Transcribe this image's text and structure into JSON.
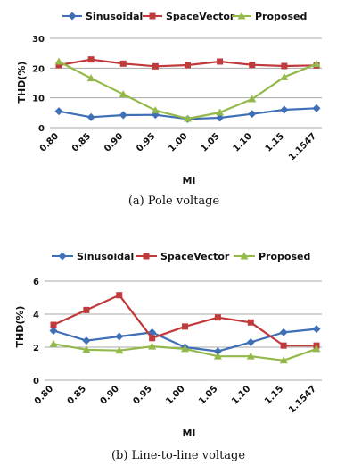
{
  "chart_data": [
    {
      "type": "line",
      "categories": [
        "0.80",
        "0.85",
        "0.90",
        "0.95",
        "1.00",
        "1.05",
        "1.10",
        "1.15",
        "1.1547"
      ],
      "series": [
        {
          "name": "Sinusoidal",
          "color": "#3f6fb5",
          "marker": "diamond",
          "values": [
            5.5,
            3.5,
            4.2,
            4.3,
            2.9,
            3.3,
            4.6,
            6.0,
            6.5
          ]
        },
        {
          "name": "SpaceVector",
          "color": "#c0393b",
          "marker": "square",
          "values": [
            21.0,
            22.9,
            21.5,
            20.6,
            21.0,
            22.2,
            21.1,
            20.7,
            20.9
          ]
        },
        {
          "name": "Proposed",
          "color": "#93b94a",
          "marker": "triangle",
          "values": [
            22.2,
            16.6,
            11.2,
            5.8,
            3.0,
            5.1,
            9.6,
            17.0,
            21.4
          ]
        }
      ],
      "xlabel": "MI",
      "ylabel": "THD(%)",
      "ylim": [
        0,
        30
      ],
      "yticks": [
        0,
        10,
        20,
        30
      ],
      "grid": true,
      "legend": "top",
      "caption": "(a) Pole voltage"
    },
    {
      "type": "line",
      "categories": [
        "0.80",
        "0.85",
        "0.90",
        "0.95",
        "1.00",
        "1.05",
        "1.10",
        "1.15",
        "1.1547"
      ],
      "series": [
        {
          "name": "Sinusoidal",
          "color": "#3f6fb5",
          "marker": "diamond",
          "values": [
            3.0,
            2.4,
            2.65,
            2.9,
            2.0,
            1.75,
            2.3,
            2.9,
            3.1
          ]
        },
        {
          "name": "SpaceVector",
          "color": "#c0393b",
          "marker": "square",
          "values": [
            3.35,
            4.25,
            5.15,
            2.55,
            3.25,
            3.8,
            3.5,
            2.1,
            2.1
          ]
        },
        {
          "name": "Proposed",
          "color": "#93b94a",
          "marker": "triangle",
          "values": [
            2.2,
            1.85,
            1.8,
            2.05,
            1.9,
            1.45,
            1.45,
            1.2,
            1.9
          ]
        }
      ],
      "xlabel": "MI",
      "ylabel": "THD(%)",
      "ylim": [
        0,
        6
      ],
      "yticks": [
        0,
        2,
        4,
        6
      ],
      "grid": true,
      "legend": "top",
      "caption": "(b) Line-to-line voltage"
    }
  ]
}
